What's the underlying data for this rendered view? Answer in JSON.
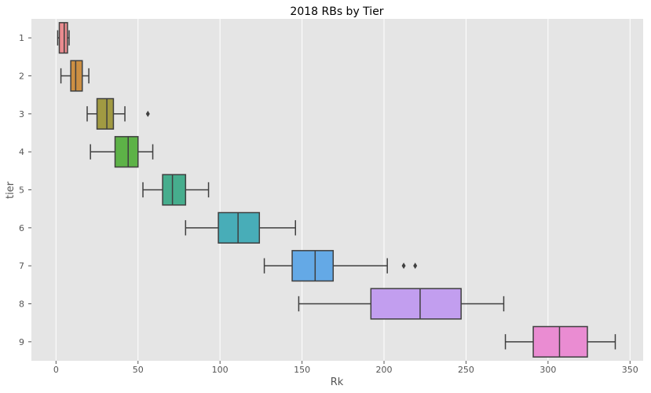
{
  "chart_data": {
    "type": "box",
    "orientation": "horizontal",
    "title": "2018 RBs by Tier",
    "xlabel": "Rk",
    "ylabel": "tier",
    "xlim": [
      -15,
      358
    ],
    "x_ticks": [
      0,
      50,
      100,
      150,
      200,
      250,
      300,
      350
    ],
    "categories": [
      "1",
      "2",
      "3",
      "4",
      "5",
      "6",
      "7",
      "8",
      "9"
    ],
    "grid": true,
    "grid_axis": "x",
    "background": "#e5e5e5",
    "series": [
      {
        "tier": "1",
        "whisker_low": 1,
        "q1": 2,
        "median": 5,
        "q3": 7,
        "whisker_high": 8,
        "outliers": [],
        "color": "#ea8b8f"
      },
      {
        "tier": "2",
        "whisker_low": 3,
        "q1": 9,
        "median": 12,
        "q3": 16,
        "whisker_high": 20,
        "outliers": [],
        "color": "#cc8f43"
      },
      {
        "tier": "3",
        "whisker_low": 19,
        "q1": 25,
        "median": 31,
        "q3": 35,
        "whisker_high": 42,
        "outliers": [
          56
        ],
        "color": "#a19a42"
      },
      {
        "tier": "4",
        "whisker_low": 21,
        "q1": 36,
        "median": 44,
        "q3": 50,
        "whisker_high": 59,
        "outliers": [],
        "color": "#5db247"
      },
      {
        "tier": "5",
        "whisker_low": 53,
        "q1": 65,
        "median": 71,
        "q3": 79,
        "whisker_high": 93,
        "outliers": [],
        "color": "#46ad8d"
      },
      {
        "tier": "6",
        "whisker_low": 79,
        "q1": 99,
        "median": 111,
        "q3": 124,
        "whisker_high": 146,
        "outliers": [],
        "color": "#48adb8"
      },
      {
        "tier": "7",
        "whisker_low": 127,
        "q1": 144,
        "median": 158,
        "q3": 169,
        "whisker_high": 202,
        "outliers": [
          212,
          219
        ],
        "color": "#64a9e6"
      },
      {
        "tier": "8",
        "whisker_low": 148,
        "q1": 192,
        "median": 222,
        "q3": 247,
        "whisker_high": 273,
        "outliers": [],
        "color": "#c29eef"
      },
      {
        "tier": "9",
        "whisker_low": 274,
        "q1": 291,
        "median": 307,
        "q3": 324,
        "whisker_high": 341,
        "outliers": [],
        "color": "#ea8cd2"
      }
    ]
  }
}
